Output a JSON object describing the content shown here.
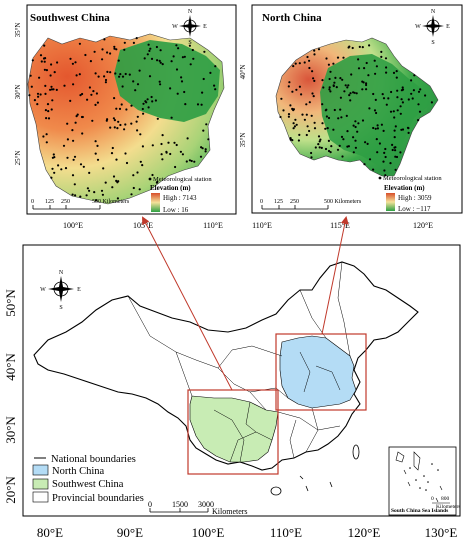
{
  "panels": {
    "southwest": {
      "title": "Southwest China",
      "legend_station": "Meteorological station",
      "legend_elevation_title": "Elevation (m)",
      "legend_high": "High : 7143",
      "legend_low": "Low : 16",
      "scale_labels": [
        "0",
        "125",
        "250",
        "500 Kilometers"
      ],
      "lat_ticks": [
        "35°N",
        "30°N",
        "25°N"
      ],
      "lon_ticks": [
        "100°E",
        "105°E",
        "110°E"
      ]
    },
    "north": {
      "title": "North China",
      "legend_station": "Meteorological station",
      "legend_elevation_title": "Elevation (m)",
      "legend_high": "High : 3059",
      "legend_low": "Low : −117",
      "scale_labels": [
        "0",
        "125",
        "250",
        "500 Kilometers"
      ],
      "lat_ticks": [
        "40°N",
        "35°N"
      ],
      "lon_ticks": [
        "110°E",
        "115°E",
        "120°E"
      ]
    }
  },
  "main_map": {
    "lat_ticks": [
      "50°N",
      "40°N",
      "30°N",
      "20°N"
    ],
    "lon_ticks": [
      "80°E",
      "90°E",
      "100°E",
      "110°E",
      "120°E",
      "130°E"
    ],
    "legend": [
      {
        "label": "National boundaries",
        "kind": "line"
      },
      {
        "label": "North China",
        "kind": "fill",
        "color": "#b4dcf5"
      },
      {
        "label": "Southwest China",
        "kind": "fill",
        "color": "#c8ecb4"
      },
      {
        "label": "Provincial boundaries",
        "kind": "fill",
        "color": "#ffffff"
      }
    ],
    "scale_labels": [
      "0",
      "1500",
      "3000"
    ],
    "scale_unit": "Kilometers",
    "inset_label": "South China Sea Islands",
    "inset_scale_labels": [
      "0",
      "800"
    ],
    "inset_scale_unit": "Kilometers"
  },
  "compass_letters": [
    "N",
    "W",
    "E",
    "S"
  ],
  "colors": {
    "north_china_fill": "#b4dcf5",
    "southwest_fill": "#c8ecb4",
    "region_box": "#c0392b",
    "arrow": "#c0392b",
    "elev_high": "#d84e2a",
    "elev_mid": "#f4e29a",
    "elev_low": "#2ea043"
  }
}
